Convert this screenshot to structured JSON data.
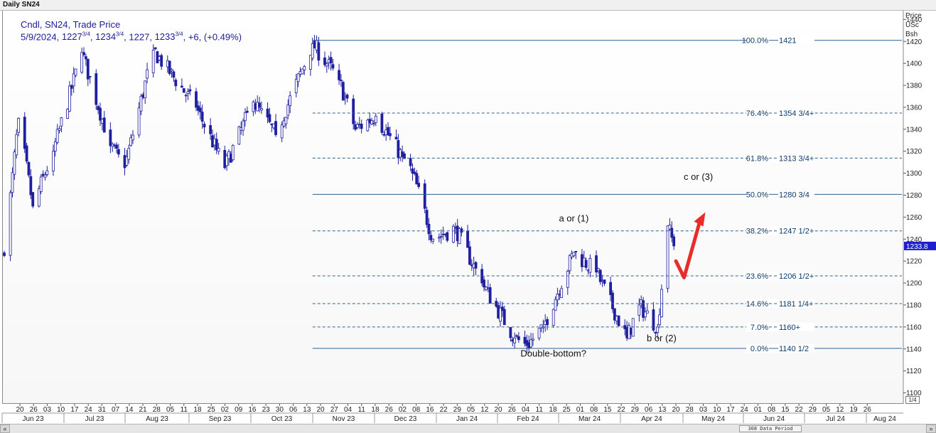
{
  "window": {
    "title": "Daily SN24"
  },
  "legend": {
    "line1": "Cndl, SN24, Trade Price",
    "date": "5/9/2024",
    "open_whole": "1227",
    "open_frac": "3/4",
    "high_whole": "1234",
    "high_frac": "3/4",
    "low": "1227",
    "close_whole": "1233",
    "close_frac": "3/4",
    "change": "+6",
    "change_pct": "(+0.49%)"
  },
  "axis": {
    "header": [
      "Price",
      "USc",
      "Bsh"
    ],
    "price_marker": "1233.8",
    "page_indicator": "1/4"
  },
  "scrollbar": {
    "thumb_label": "308 Data Period",
    "left_arrow": "«",
    "right_arrow": "»"
  },
  "colors": {
    "candle": "#1f1fa0",
    "fib_line": "#2f5f8f",
    "fib_label": "#0b3a6a",
    "marker": "#1f1fd0",
    "arrow": "#e82c2c"
  },
  "chart_data": {
    "type": "candlestick",
    "symbol": "SN24",
    "ylim": [
      1090,
      1448
    ],
    "y_ticks": [
      1100,
      1120,
      1140,
      1160,
      1180,
      1200,
      1220,
      1240,
      1260,
      1280,
      1300,
      1320,
      1340,
      1360,
      1380,
      1400,
      1420,
      1440
    ],
    "x_day_ticks": [
      "20",
      "26",
      "03",
      "10",
      "17",
      "24",
      "31",
      "07",
      "14",
      "21",
      "28",
      "05",
      "11",
      "18",
      "25",
      "02",
      "09",
      "16",
      "23",
      "30",
      "06",
      "13",
      "20",
      "27",
      "04",
      "11",
      "18",
      "26",
      "02",
      "08",
      "16",
      "22",
      "29",
      "05",
      "12",
      "20",
      "26",
      "04",
      "11",
      "18",
      "25",
      "01",
      "08",
      "15",
      "22",
      "29",
      "06",
      "13",
      "20",
      "28",
      "03",
      "10",
      "17",
      "24",
      "01",
      "08",
      "15",
      "22",
      "29",
      "05",
      "12",
      "19",
      "26"
    ],
    "x_month_labels": [
      "Jun 23",
      "Jul 23",
      "Aug 23",
      "Sep 23",
      "Oct 23",
      "Nov 23",
      "Dec 23",
      "Jan 24",
      "Feb 24",
      "Mar 24",
      "Apr 24",
      "May 24",
      "Jun 24",
      "Jul 24",
      "Aug 24"
    ],
    "key_closes": [
      {
        "date": "2023-06-16",
        "price": 1225
      },
      {
        "date": "2023-06-23",
        "price": 1350
      },
      {
        "date": "2023-06-30",
        "price": 1270
      },
      {
        "date": "2023-07-10",
        "price": 1320
      },
      {
        "date": "2023-07-24",
        "price": 1410
      },
      {
        "date": "2023-08-07",
        "price": 1325
      },
      {
        "date": "2023-08-14",
        "price": 1305
      },
      {
        "date": "2023-08-28",
        "price": 1412
      },
      {
        "date": "2023-09-18",
        "price": 1360
      },
      {
        "date": "2023-10-02",
        "price": 1305
      },
      {
        "date": "2023-10-16",
        "price": 1365
      },
      {
        "date": "2023-10-27",
        "price": 1335
      },
      {
        "date": "2023-11-14",
        "price": 1418
      },
      {
        "date": "2023-11-27",
        "price": 1385
      },
      {
        "date": "2023-12-05",
        "price": 1340
      },
      {
        "date": "2023-12-15",
        "price": 1352
      },
      {
        "date": "2023-12-28",
        "price": 1315
      },
      {
        "date": "2024-01-02",
        "price": 1300
      },
      {
        "date": "2024-01-12",
        "price": 1240
      },
      {
        "date": "2024-01-23",
        "price": 1250
      },
      {
        "date": "2024-02-05",
        "price": 1200
      },
      {
        "date": "2024-02-21",
        "price": 1150
      },
      {
        "date": "2024-02-27",
        "price": 1143
      },
      {
        "date": "2024-03-06",
        "price": 1160
      },
      {
        "date": "2024-03-21",
        "price": 1228
      },
      {
        "date": "2024-04-01",
        "price": 1210
      },
      {
        "date": "2024-04-16",
        "price": 1150
      },
      {
        "date": "2024-04-22",
        "price": 1180
      },
      {
        "date": "2024-05-01",
        "price": 1160
      },
      {
        "date": "2024-05-06",
        "price": 1252
      },
      {
        "date": "2024-05-09",
        "price": 1233.75
      }
    ],
    "fibonacci": [
      {
        "label": "100.0%",
        "value_text": "1421",
        "price": 1421
      },
      {
        "label": "76.4%",
        "value_text": "1354 3/4+",
        "price": 1354.75
      },
      {
        "label": "61.8%",
        "value_text": "1313 3/4+",
        "price": 1313.75
      },
      {
        "label": "50.0%",
        "value_text": "1280 3/4",
        "price": 1280.75
      },
      {
        "label": "38.2%",
        "value_text": "1247 1/2+",
        "price": 1247.5
      },
      {
        "label": "23.6%",
        "value_text": "1206 1/2+",
        "price": 1206.5
      },
      {
        "label": "14.6%",
        "value_text": "1181 1/4+",
        "price": 1181.25
      },
      {
        "label": "7.0%",
        "value_text": "1160+",
        "price": 1160
      },
      {
        "label": "0.0%",
        "value_text": "1140 1/2",
        "price": 1140.5
      }
    ],
    "annotations": [
      {
        "text": "c or (3)",
        "date": "2024-05-21",
        "price": 1294
      },
      {
        "text": "a or (1)",
        "date": "2024-03-21",
        "price": 1256
      },
      {
        "text": "b or (2)",
        "date": "2024-05-03",
        "price": 1147
      },
      {
        "text": "Double-bottom?",
        "date": "2024-03-11",
        "price": 1133
      }
    ]
  }
}
